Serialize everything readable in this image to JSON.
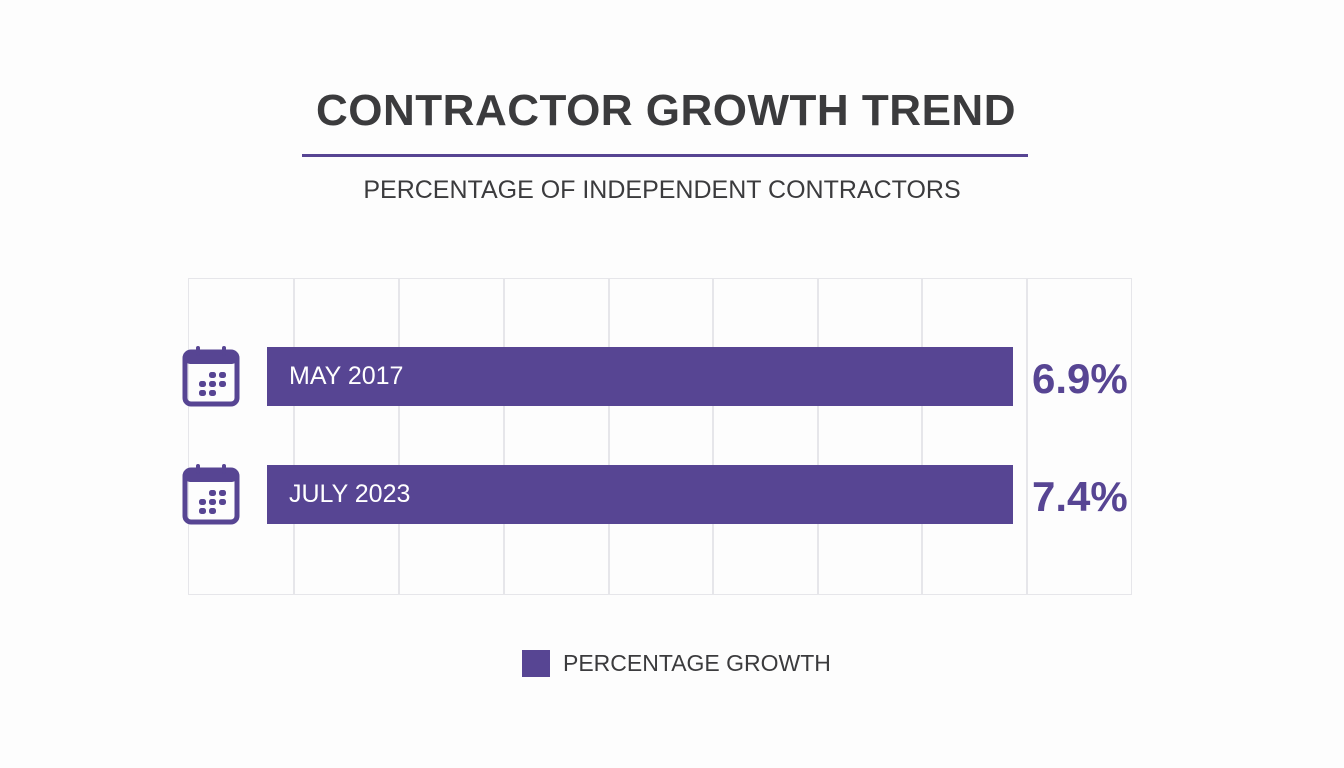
{
  "chart_data": {
    "type": "bar",
    "orientation": "horizontal",
    "title": "CONTRACTOR GROWTH TREND",
    "subtitle": "PERCENTAGE OF INDEPENDENT CONTRACTORS",
    "categories": [
      "MAY 2017",
      "JULY 2023"
    ],
    "series": [
      {
        "name": "PERCENTAGE GROWTH",
        "values": [
          6.9,
          7.4
        ]
      }
    ],
    "data_labels": [
      "6.9%",
      "7.4%"
    ],
    "legend": {
      "position": "bottom",
      "label": "PERCENTAGE GROWTH"
    },
    "grid": true,
    "colors": {
      "bar": "#574593",
      "title": "#3b3b3d",
      "grid": "#e6e6ea"
    },
    "icons": [
      "calendar-icon",
      "calendar-icon"
    ]
  }
}
